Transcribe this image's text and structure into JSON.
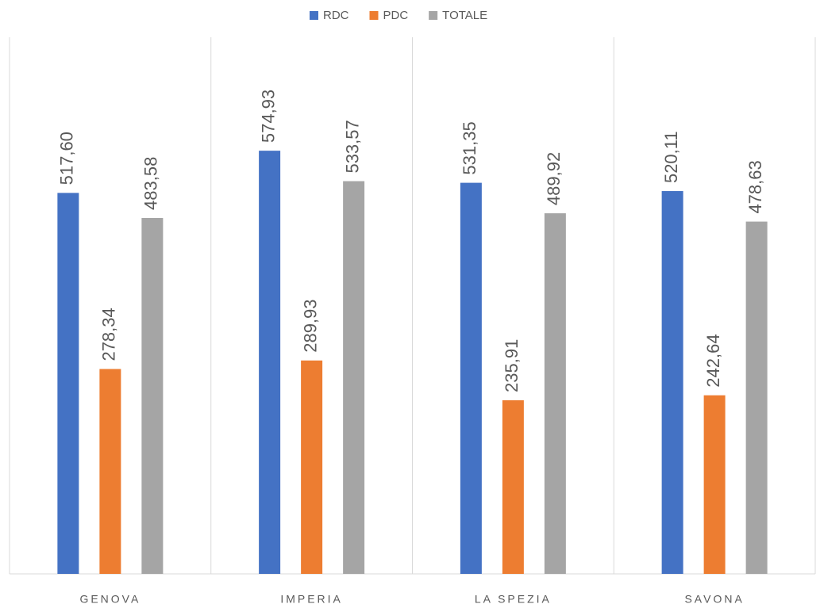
{
  "chart_data": {
    "type": "bar",
    "categories": [
      "GENOVA",
      "IMPERIA",
      "LA SPEZIA",
      "SAVONA"
    ],
    "series": [
      {
        "name": "RDC",
        "color": "#4472c4",
        "values": [
          517.6,
          574.93,
          531.35,
          520.11
        ],
        "value_labels": [
          "517,60",
          "574,93",
          "531,35",
          "520,11"
        ]
      },
      {
        "name": "PDC",
        "color": "#ed7d31",
        "values": [
          278.34,
          289.93,
          235.91,
          242.64
        ],
        "value_labels": [
          "278,34",
          "289,93",
          "235,91",
          "242,64"
        ]
      },
      {
        "name": "TOTALE",
        "color": "#a5a5a5",
        "values": [
          483.58,
          533.57,
          489.92,
          478.63
        ],
        "value_labels": [
          "483,58",
          "533,57",
          "489,92",
          "478,63"
        ]
      }
    ],
    "ylim": [
      0,
      700
    ],
    "legend": "top"
  }
}
